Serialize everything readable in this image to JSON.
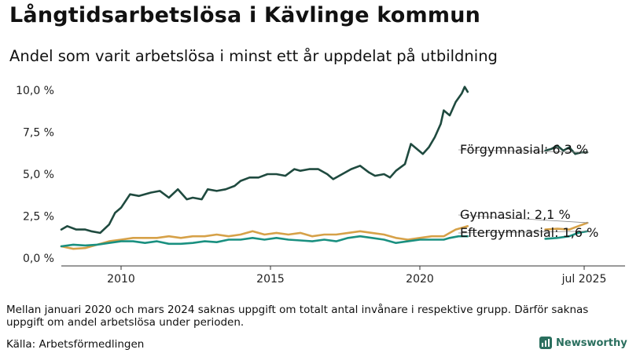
{
  "title": "Långtidsarbetslösa i Kävlinge kommun",
  "subtitle": "Andel som varit arbetslösa i minst ett år uppdelat på utbildning",
  "note": "Mellan januari 2020 och mars 2024 saknas uppgift om totalt antal invånare i respektive grupp. Därför saknas uppgift om andel arbetslösa under perioden.",
  "source": "Källa: Arbetsförmedlingen",
  "brand": "Newsworthy",
  "colors": {
    "forgymnasial": "#1f4a3f",
    "gymnasial": "#d6a148",
    "eftergymnasial": "#1a9080",
    "brand": "#2a6f5e"
  },
  "chart_data": {
    "type": "line",
    "x_axis": {
      "unit": "year",
      "range": [
        2008.0,
        2027.0
      ],
      "ticks": [
        {
          "x": 2010,
          "label": "2010"
        },
        {
          "x": 2015,
          "label": "2015"
        },
        {
          "x": 2020,
          "label": "2020"
        },
        {
          "x": 2025.5,
          "label": "jul 2025"
        }
      ]
    },
    "y_axis": {
      "range": [
        0,
        10
      ],
      "ticks": [
        {
          "y": 0,
          "label": "0,0 %"
        },
        {
          "y": 2.5,
          "label": "2,5 %"
        },
        {
          "y": 5,
          "label": "5,0 %"
        },
        {
          "y": 7.5,
          "label": "7,5 %"
        },
        {
          "y": 10,
          "label": "10,0 %"
        }
      ]
    },
    "grid": false,
    "legend": "direct labels at line ends",
    "series": [
      {
        "name": "Förgymnasial",
        "end_label": "Förgymnasial: 6,3 %",
        "color": "#1f4a3f",
        "segments": [
          [
            [
              2008.0,
              1.7
            ],
            [
              2008.2,
              1.9
            ],
            [
              2008.5,
              1.7
            ],
            [
              2008.8,
              1.7
            ],
            [
              2009.0,
              1.6
            ],
            [
              2009.3,
              1.5
            ],
            [
              2009.6,
              2.0
            ],
            [
              2009.8,
              2.7
            ],
            [
              2010.0,
              3.0
            ],
            [
              2010.3,
              3.8
            ],
            [
              2010.6,
              3.7
            ],
            [
              2011.0,
              3.9
            ],
            [
              2011.3,
              4.0
            ],
            [
              2011.6,
              3.6
            ],
            [
              2011.9,
              4.1
            ],
            [
              2012.2,
              3.5
            ],
            [
              2012.4,
              3.6
            ],
            [
              2012.7,
              3.5
            ],
            [
              2012.9,
              4.1
            ],
            [
              2013.2,
              4.0
            ],
            [
              2013.5,
              4.1
            ],
            [
              2013.8,
              4.3
            ],
            [
              2014.0,
              4.6
            ],
            [
              2014.3,
              4.8
            ],
            [
              2014.6,
              4.8
            ],
            [
              2014.9,
              5.0
            ],
            [
              2015.2,
              5.0
            ],
            [
              2015.5,
              4.9
            ],
            [
              2015.8,
              5.3
            ],
            [
              2016.0,
              5.2
            ],
            [
              2016.3,
              5.3
            ],
            [
              2016.6,
              5.3
            ],
            [
              2016.9,
              5.0
            ],
            [
              2017.1,
              4.7
            ],
            [
              2017.4,
              5.0
            ],
            [
              2017.7,
              5.3
            ],
            [
              2018.0,
              5.5
            ],
            [
              2018.3,
              5.1
            ],
            [
              2018.5,
              4.9
            ],
            [
              2018.8,
              5.0
            ],
            [
              2019.0,
              4.8
            ],
            [
              2019.2,
              5.2
            ],
            [
              2019.5,
              5.6
            ],
            [
              2019.7,
              6.8
            ],
            [
              2019.9,
              6.5
            ],
            [
              2020.1,
              6.2
            ],
            [
              2020.3,
              6.6
            ],
            [
              2020.5,
              7.2
            ],
            [
              2020.7,
              8.0
            ],
            [
              2020.8,
              8.8
            ],
            [
              2021.0,
              8.5
            ],
            [
              2021.2,
              9.3
            ],
            [
              2021.4,
              9.8
            ],
            [
              2021.5,
              10.2
            ],
            [
              2021.6,
              9.9
            ]
          ],
          [
            [
              2024.2,
              6.4
            ],
            [
              2024.4,
              6.5
            ],
            [
              2024.6,
              6.7
            ],
            [
              2024.8,
              6.4
            ],
            [
              2025.0,
              6.6
            ],
            [
              2025.2,
              6.2
            ],
            [
              2025.4,
              6.3
            ],
            [
              2025.6,
              6.3
            ]
          ]
        ]
      },
      {
        "name": "Gymnasial",
        "end_label": "Gymnasial: 2,1 %",
        "color": "#d6a148",
        "segments": [
          [
            [
              2008.0,
              0.7
            ],
            [
              2008.4,
              0.55
            ],
            [
              2008.8,
              0.6
            ],
            [
              2009.2,
              0.8
            ],
            [
              2009.6,
              1.0
            ],
            [
              2010.0,
              1.1
            ],
            [
              2010.4,
              1.2
            ],
            [
              2010.8,
              1.2
            ],
            [
              2011.2,
              1.2
            ],
            [
              2011.6,
              1.3
            ],
            [
              2012.0,
              1.2
            ],
            [
              2012.4,
              1.3
            ],
            [
              2012.8,
              1.3
            ],
            [
              2013.2,
              1.4
            ],
            [
              2013.6,
              1.3
            ],
            [
              2014.0,
              1.4
            ],
            [
              2014.4,
              1.6
            ],
            [
              2014.8,
              1.4
            ],
            [
              2015.2,
              1.5
            ],
            [
              2015.6,
              1.4
            ],
            [
              2016.0,
              1.5
            ],
            [
              2016.4,
              1.3
            ],
            [
              2016.8,
              1.4
            ],
            [
              2017.2,
              1.4
            ],
            [
              2017.6,
              1.5
            ],
            [
              2018.0,
              1.6
            ],
            [
              2018.4,
              1.5
            ],
            [
              2018.8,
              1.4
            ],
            [
              2019.2,
              1.2
            ],
            [
              2019.6,
              1.1
            ],
            [
              2020.0,
              1.2
            ],
            [
              2020.4,
              1.3
            ],
            [
              2020.8,
              1.3
            ],
            [
              2021.0,
              1.5
            ],
            [
              2021.2,
              1.7
            ],
            [
              2021.4,
              1.8
            ],
            [
              2021.6,
              1.9
            ]
          ],
          [
            [
              2024.2,
              1.7
            ],
            [
              2024.6,
              1.75
            ],
            [
              2025.0,
              1.7
            ],
            [
              2025.3,
              1.9
            ],
            [
              2025.6,
              2.1
            ]
          ]
        ]
      },
      {
        "name": "Eftergymnasial",
        "end_label": "Eftergymnasial: 1,6 %",
        "color": "#1a9080",
        "segments": [
          [
            [
              2008.0,
              0.7
            ],
            [
              2008.4,
              0.8
            ],
            [
              2008.8,
              0.75
            ],
            [
              2009.2,
              0.8
            ],
            [
              2009.6,
              0.9
            ],
            [
              2010.0,
              1.0
            ],
            [
              2010.4,
              1.0
            ],
            [
              2010.8,
              0.9
            ],
            [
              2011.2,
              1.0
            ],
            [
              2011.6,
              0.85
            ],
            [
              2012.0,
              0.85
            ],
            [
              2012.4,
              0.9
            ],
            [
              2012.8,
              1.0
            ],
            [
              2013.2,
              0.95
            ],
            [
              2013.6,
              1.1
            ],
            [
              2014.0,
              1.1
            ],
            [
              2014.4,
              1.2
            ],
            [
              2014.8,
              1.1
            ],
            [
              2015.2,
              1.2
            ],
            [
              2015.6,
              1.1
            ],
            [
              2016.0,
              1.05
            ],
            [
              2016.4,
              1.0
            ],
            [
              2016.8,
              1.1
            ],
            [
              2017.2,
              1.0
            ],
            [
              2017.6,
              1.2
            ],
            [
              2018.0,
              1.3
            ],
            [
              2018.4,
              1.2
            ],
            [
              2018.8,
              1.1
            ],
            [
              2019.2,
              0.9
            ],
            [
              2019.6,
              1.0
            ],
            [
              2020.0,
              1.1
            ],
            [
              2020.4,
              1.1
            ],
            [
              2020.8,
              1.1
            ],
            [
              2021.0,
              1.2
            ],
            [
              2021.3,
              1.3
            ],
            [
              2021.6,
              1.3
            ]
          ],
          [
            [
              2024.2,
              1.15
            ],
            [
              2024.6,
              1.2
            ],
            [
              2025.0,
              1.3
            ],
            [
              2025.3,
              1.5
            ],
            [
              2025.6,
              1.6
            ]
          ]
        ]
      }
    ]
  }
}
